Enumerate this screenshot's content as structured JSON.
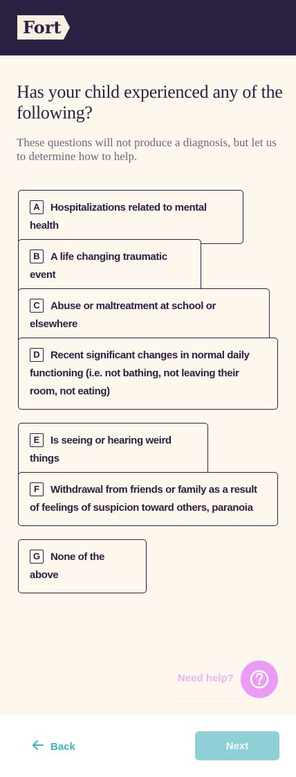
{
  "header": {
    "logo_text": "Fort"
  },
  "question": {
    "title": "Has your child experienced any of the following?",
    "subtitle": "These questions will not produce a diagnosis, but let us to determine how to help."
  },
  "options": [
    {
      "key": "A",
      "label": "Hospitalizations related to mental health"
    },
    {
      "key": "B",
      "label": "A life changing traumatic event"
    },
    {
      "key": "C",
      "label": "Abuse or maltreatment at school or elsewhere"
    },
    {
      "key": "D",
      "label": "Recent significant changes in normal daily functioning (i.e. not bathing, not leaving their room, not eating)"
    },
    {
      "key": "E",
      "label": "Is seeing or hearing weird things"
    },
    {
      "key": "F",
      "label": "Withdrawal from friends or family as a result of feelings of suspicion toward others, paranoia"
    },
    {
      "key": "G",
      "label": "None of the above"
    }
  ],
  "help": {
    "label": "Need help?",
    "icon": "question-mark-icon"
  },
  "footer": {
    "back_label": "Back",
    "next_label": "Next"
  },
  "colors": {
    "brand_dark": "#2b2243",
    "background": "#fdf7ee",
    "accent_teal": "#36b8c5",
    "help_pink": "#ea9cf5"
  }
}
